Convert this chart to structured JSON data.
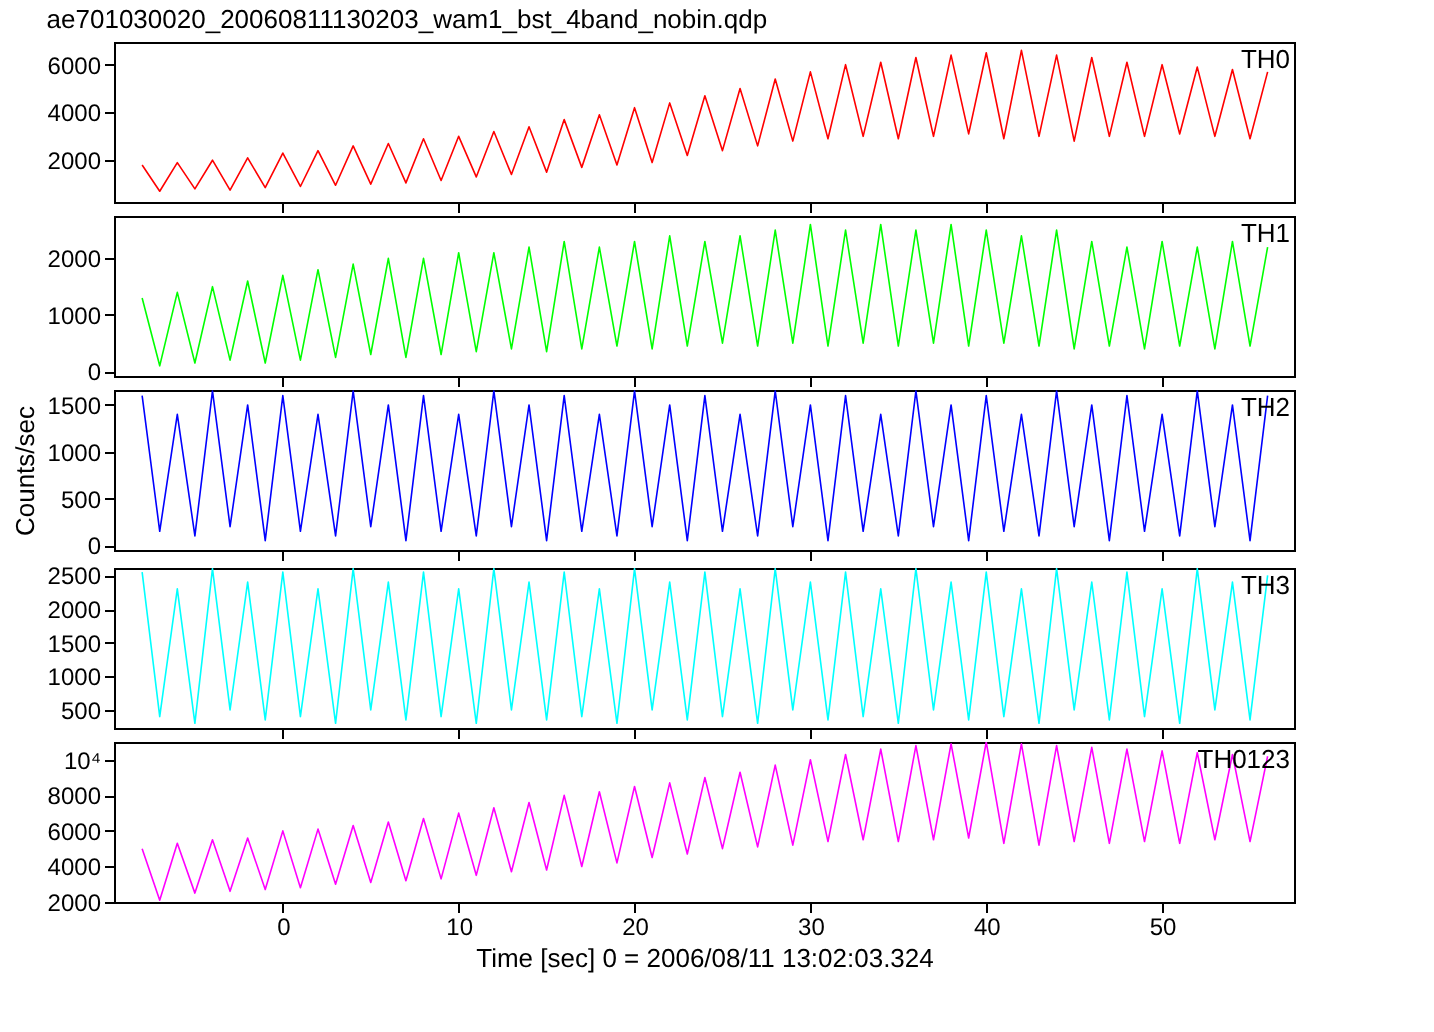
{
  "chart_data": [
    {
      "type": "line",
      "title": "ae701030020_20060811130203_wam1_bst_4band_nobin.qdp",
      "x": [
        -8,
        -7,
        -6,
        -5,
        -4,
        -3,
        -2,
        -1,
        0,
        1,
        2,
        3,
        4,
        5,
        6,
        7,
        8,
        9,
        10,
        11,
        12,
        13,
        14,
        15,
        16,
        17,
        18,
        19,
        20,
        21,
        22,
        23,
        24,
        25,
        26,
        27,
        28,
        29,
        30,
        31,
        32,
        33,
        34,
        35,
        36,
        37,
        38,
        39,
        40,
        41,
        42,
        43,
        44,
        45,
        46,
        47,
        48,
        49,
        50,
        51,
        52,
        53,
        54,
        55,
        56
      ],
      "xlim": [
        -9.6,
        57.5
      ],
      "xticks": [
        0,
        10,
        20,
        30,
        40,
        50
      ],
      "ylim": [
        250,
        6950
      ],
      "yticks": [
        2000,
        4000,
        6000
      ],
      "tick_labels": "y",
      "marker": "none",
      "line_style": "solid",
      "series": [
        {
          "name": "TH0",
          "color": "#ff0000",
          "values": [
            1800,
            700,
            1900,
            800,
            2000,
            750,
            2100,
            850,
            2300,
            900,
            2400,
            950,
            2600,
            1000,
            2700,
            1050,
            2900,
            1150,
            3000,
            1300,
            3200,
            1400,
            3400,
            1500,
            3700,
            1700,
            3900,
            1800,
            4200,
            1900,
            4400,
            2200,
            4700,
            2400,
            5000,
            2600,
            5400,
            2800,
            5700,
            2900,
            6000,
            3000,
            6100,
            2900,
            6300,
            3000,
            6400,
            3100,
            6500,
            2900,
            6600,
            3000,
            6400,
            2800,
            6300,
            3000,
            6100,
            3000,
            6000,
            3100,
            5900,
            3000,
            5800,
            2900,
            5700
          ]
        }
      ]
    },
    {
      "type": "line",
      "x": [
        -8,
        -7,
        -6,
        -5,
        -4,
        -3,
        -2,
        -1,
        0,
        1,
        2,
        3,
        4,
        5,
        6,
        7,
        8,
        9,
        10,
        11,
        12,
        13,
        14,
        15,
        16,
        17,
        18,
        19,
        20,
        21,
        22,
        23,
        24,
        25,
        26,
        27,
        28,
        29,
        30,
        31,
        32,
        33,
        34,
        35,
        36,
        37,
        38,
        39,
        40,
        41,
        42,
        43,
        44,
        45,
        46,
        47,
        48,
        49,
        50,
        51,
        52,
        53,
        54,
        55,
        56
      ],
      "xlim": [
        -9.6,
        57.5
      ],
      "xticks": [
        0,
        10,
        20,
        30,
        40,
        50
      ],
      "ylim": [
        -80,
        2750
      ],
      "yticks": [
        0,
        1000,
        2000
      ],
      "tick_labels": "y",
      "marker": "none",
      "line_style": "solid",
      "series": [
        {
          "name": "TH1",
          "color": "#00ff00",
          "values": [
            1300,
            100,
            1400,
            150,
            1500,
            200,
            1600,
            150,
            1700,
            200,
            1800,
            250,
            1900,
            300,
            2000,
            250,
            2000,
            300,
            2100,
            350,
            2100,
            400,
            2200,
            350,
            2300,
            400,
            2200,
            450,
            2300,
            400,
            2400,
            450,
            2300,
            500,
            2400,
            450,
            2500,
            500,
            2600,
            450,
            2500,
            500,
            2600,
            450,
            2500,
            500,
            2600,
            450,
            2500,
            500,
            2400,
            450,
            2500,
            400,
            2300,
            450,
            2200,
            400,
            2300,
            450,
            2200,
            400,
            2300,
            450,
            2200
          ]
        }
      ]
    },
    {
      "type": "line",
      "ylabel": "Counts/sec",
      "x": [
        -8,
        -7,
        -6,
        -5,
        -4,
        -3,
        -2,
        -1,
        0,
        1,
        2,
        3,
        4,
        5,
        6,
        7,
        8,
        9,
        10,
        11,
        12,
        13,
        14,
        15,
        16,
        17,
        18,
        19,
        20,
        21,
        22,
        23,
        24,
        25,
        26,
        27,
        28,
        29,
        30,
        31,
        32,
        33,
        34,
        35,
        36,
        37,
        38,
        39,
        40,
        41,
        42,
        43,
        44,
        45,
        46,
        47,
        48,
        49,
        50,
        51,
        52,
        53,
        54,
        55,
        56
      ],
      "xlim": [
        -9.6,
        57.5
      ],
      "xticks": [
        0,
        10,
        20,
        30,
        40,
        50
      ],
      "ylim": [
        -50,
        1660
      ],
      "yticks": [
        0,
        500,
        1000,
        1500
      ],
      "tick_labels": "y",
      "marker": "none",
      "line_style": "solid",
      "series": [
        {
          "name": "TH2",
          "color": "#0000ff",
          "values": [
            1600,
            150,
            1400,
            100,
            1650,
            200,
            1500,
            50,
            1600,
            150,
            1400,
            100,
            1650,
            200,
            1500,
            50,
            1600,
            150,
            1400,
            100,
            1650,
            200,
            1500,
            50,
            1600,
            150,
            1400,
            100,
            1650,
            200,
            1500,
            50,
            1600,
            150,
            1400,
            100,
            1650,
            200,
            1500,
            50,
            1600,
            150,
            1400,
            100,
            1650,
            200,
            1500,
            50,
            1600,
            150,
            1400,
            100,
            1650,
            200,
            1500,
            50,
            1600,
            150,
            1400,
            100,
            1650,
            200,
            1500,
            50,
            1600
          ]
        }
      ]
    },
    {
      "type": "line",
      "x": [
        -8,
        -7,
        -6,
        -5,
        -4,
        -3,
        -2,
        -1,
        0,
        1,
        2,
        3,
        4,
        5,
        6,
        7,
        8,
        9,
        10,
        11,
        12,
        13,
        14,
        15,
        16,
        17,
        18,
        19,
        20,
        21,
        22,
        23,
        24,
        25,
        26,
        27,
        28,
        29,
        30,
        31,
        32,
        33,
        34,
        35,
        36,
        37,
        38,
        39,
        40,
        41,
        42,
        43,
        44,
        45,
        46,
        47,
        48,
        49,
        50,
        51,
        52,
        53,
        54,
        55,
        56
      ],
      "xlim": [
        -9.6,
        57.5
      ],
      "xticks": [
        0,
        10,
        20,
        30,
        40,
        50
      ],
      "ylim": [
        230,
        2610
      ],
      "yticks": [
        500,
        1000,
        1500,
        2000,
        2500
      ],
      "tick_labels": "y",
      "marker": "none",
      "line_style": "solid",
      "series": [
        {
          "name": "TH3",
          "color": "#00ffff",
          "values": [
            2550,
            400,
            2300,
            300,
            2600,
            500,
            2400,
            350,
            2550,
            400,
            2300,
            300,
            2600,
            500,
            2400,
            350,
            2550,
            400,
            2300,
            300,
            2600,
            500,
            2400,
            350,
            2550,
            400,
            2300,
            300,
            2600,
            500,
            2400,
            350,
            2550,
            400,
            2300,
            300,
            2600,
            500,
            2400,
            350,
            2550,
            400,
            2300,
            300,
            2600,
            500,
            2400,
            350,
            2550,
            400,
            2300,
            300,
            2600,
            500,
            2400,
            350,
            2550,
            400,
            2300,
            300,
            2600,
            500,
            2400,
            350,
            2500
          ]
        }
      ]
    },
    {
      "type": "line",
      "xlabel": "Time [sec] 0 = 2006/08/11 13:02:03.324",
      "x": [
        -8,
        -7,
        -6,
        -5,
        -4,
        -3,
        -2,
        -1,
        0,
        1,
        2,
        3,
        4,
        5,
        6,
        7,
        8,
        9,
        10,
        11,
        12,
        13,
        14,
        15,
        16,
        17,
        18,
        19,
        20,
        21,
        22,
        23,
        24,
        25,
        26,
        27,
        28,
        29,
        30,
        31,
        32,
        33,
        34,
        35,
        36,
        37,
        38,
        39,
        40,
        41,
        42,
        43,
        44,
        45,
        46,
        47,
        48,
        49,
        50,
        51,
        52,
        53,
        54,
        55,
        56
      ],
      "xlim": [
        -9.6,
        57.5
      ],
      "xticks": [
        0,
        10,
        20,
        30,
        40,
        50
      ],
      "ylim": [
        2000,
        11000
      ],
      "yticks": [
        2000,
        4000,
        6000,
        8000,
        {
          "value": 10000,
          "label": "10⁴"
        }
      ],
      "marker": "none",
      "line_style": "solid",
      "series": [
        {
          "name": "TH0123",
          "color": "#ff00ff",
          "values": [
            5000,
            2100,
            5300,
            2500,
            5500,
            2600,
            5600,
            2700,
            6000,
            2800,
            6100,
            3000,
            6300,
            3100,
            6500,
            3200,
            6700,
            3300,
            7000,
            3500,
            7300,
            3700,
            7600,
            3800,
            8000,
            4000,
            8200,
            4200,
            8500,
            4500,
            8700,
            4700,
            9000,
            5000,
            9300,
            5100,
            9700,
            5200,
            10000,
            5400,
            10300,
            5500,
            10600,
            5400,
            10800,
            5500,
            10900,
            5600,
            11000,
            5300,
            10900,
            5200,
            10800,
            5400,
            10700,
            5300,
            10600,
            5400,
            10500,
            5300,
            10400,
            5500,
            10300,
            5400,
            10200
          ]
        }
      ]
    }
  ]
}
